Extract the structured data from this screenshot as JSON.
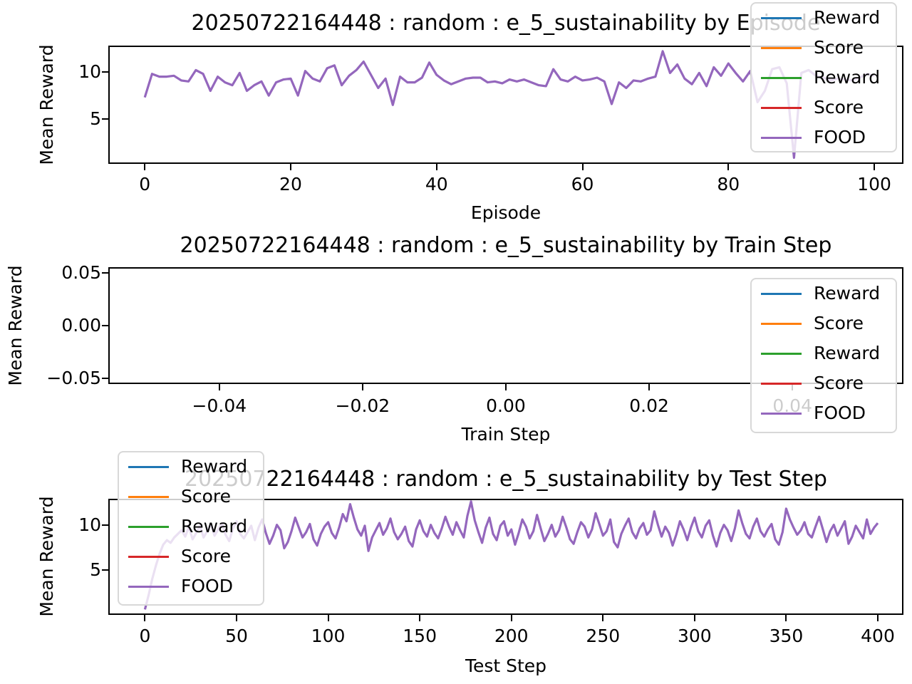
{
  "colors": {
    "background": "#ffffff",
    "axis": "#000000",
    "food_line": "#9467bd",
    "legend_border": "#d8d8d8"
  },
  "legend": {
    "entries": [
      {
        "label": "Reward",
        "color": "#1f77b4"
      },
      {
        "label": "Score",
        "color": "#ff7f0e"
      },
      {
        "label": "Reward",
        "color": "#2ca02c"
      },
      {
        "label": "Score",
        "color": "#d62728"
      },
      {
        "label": "FOOD",
        "color": "#9467bd"
      }
    ]
  },
  "chart_data": [
    {
      "type": "line",
      "title": "20250722164448 : random : e_5_sustainability by Episode",
      "xlabel": "Episode",
      "ylabel": "Mean Reward",
      "xlim": [
        -5,
        104
      ],
      "ylim": [
        0.25,
        12.8
      ],
      "xticks": [
        0,
        20,
        40,
        60,
        80,
        100
      ],
      "xtick_labels": [
        "0",
        "20",
        "40",
        "60",
        "80",
        "100"
      ],
      "yticks": [
        10,
        5
      ],
      "ytick_labels": [
        "10",
        "5"
      ],
      "grid": false,
      "legend_position": "upper-right",
      "series": [
        {
          "name": "FOOD",
          "color": "#9467bd",
          "x0": 0,
          "dx": 1,
          "y": [
            7.3,
            9.8,
            9.5,
            9.5,
            9.6,
            9.1,
            9.0,
            10.2,
            9.8,
            8.0,
            9.5,
            8.9,
            8.6,
            9.9,
            8.0,
            8.6,
            9.0,
            7.5,
            8.9,
            9.2,
            9.3,
            7.5,
            10.1,
            9.3,
            9.0,
            10.4,
            10.7,
            8.6,
            9.6,
            10.2,
            11.1,
            9.7,
            8.3,
            9.3,
            6.5,
            9.5,
            8.9,
            8.9,
            9.4,
            11.0,
            9.7,
            9.1,
            8.7,
            9.0,
            9.3,
            9.4,
            9.4,
            8.9,
            9.0,
            8.8,
            9.2,
            9.0,
            9.2,
            8.9,
            8.6,
            8.5,
            10.3,
            9.2,
            9.0,
            9.5,
            9.1,
            9.2,
            9.4,
            9.0,
            6.6,
            8.9,
            8.3,
            9.1,
            9.0,
            9.3,
            9.5,
            12.2,
            9.9,
            10.8,
            9.3,
            8.7,
            9.9,
            8.5,
            10.5,
            9.6,
            10.9,
            9.9,
            9.0,
            10.1,
            6.8,
            8.0,
            10.3,
            10.5,
            8.8,
            0.9,
            9.9,
            10.2,
            9.6,
            9.4,
            9.1,
            9.3,
            9.2,
            9.1,
            9.4,
            9.8,
            9.6
          ]
        }
      ]
    },
    {
      "type": "line",
      "title": "20250722164448 : random : e_5_sustainability by Train Step",
      "xlabel": "Train Step",
      "ylabel": "Mean Reward",
      "xlim": [
        -0.0555,
        0.0555
      ],
      "ylim": [
        -0.0555,
        0.0555
      ],
      "xticks": [
        -0.04,
        -0.02,
        0,
        0.02,
        0.04
      ],
      "xtick_labels": [
        "−0.04",
        "−0.02",
        "0.00",
        "0.02",
        "0.04"
      ],
      "yticks": [
        0.05,
        0,
        -0.05
      ],
      "ytick_labels": [
        "0.05",
        "0.00",
        "−0.05"
      ],
      "grid": false,
      "legend_position": "center-right",
      "series": []
    },
    {
      "type": "line",
      "title": "20250722164448 : random : e_5_sustainability by Test Step",
      "xlabel": "Test Step",
      "ylabel": "Mean Reward",
      "xlim": [
        -20,
        414
      ],
      "ylim": [
        0,
        12.9
      ],
      "xticks": [
        0,
        50,
        100,
        150,
        200,
        250,
        300,
        350,
        400
      ],
      "xtick_labels": [
        "0",
        "50",
        "100",
        "150",
        "200",
        "250",
        "300",
        "350",
        "400"
      ],
      "yticks": [
        10,
        5
      ],
      "ytick_labels": [
        "10",
        "5"
      ],
      "grid": false,
      "legend_position": "upper-left",
      "series": [
        {
          "name": "FOOD",
          "color": "#9467bd",
          "x0": 0,
          "dx": 2,
          "y": [
            0.6,
            2.2,
            4.0,
            5.5,
            6.8,
            7.8,
            8.3,
            8.0,
            8.6,
            9.0,
            9.4,
            8.7,
            9.8,
            8.4,
            9.1,
            9.9,
            8.6,
            9.3,
            10.1,
            8.8,
            9.5,
            10.2,
            8.9,
            8.2,
            9.6,
            10.4,
            9.0,
            8.5,
            9.2,
            9.9,
            8.3,
            9.7,
            10.6,
            9.1,
            7.9,
            8.8,
            10.0,
            9.4,
            7.4,
            8.1,
            9.3,
            10.8,
            9.7,
            8.6,
            9.2,
            10.1,
            8.4,
            7.7,
            9.0,
            9.8,
            10.3,
            9.1,
            8.5,
            9.7,
            11.2,
            10.4,
            12.3,
            10.8,
            9.5,
            8.8,
            9.9,
            7.1,
            8.6,
            9.4,
            10.2,
            8.9,
            9.6,
            10.7,
            9.2,
            8.4,
            9.0,
            9.8,
            8.2,
            7.6,
            9.5,
            10.5,
            9.3,
            8.7,
            10.0,
            9.1,
            8.5,
            9.6,
            10.9,
            9.8,
            8.9,
            10.3,
            9.4,
            8.6,
            11.0,
            12.6,
            10.5,
            9.2,
            8.0,
            9.7,
            10.8,
            9.0,
            8.3,
            9.9,
            10.4,
            8.8,
            9.5,
            7.8,
            9.1,
            10.6,
            9.8,
            8.5,
            9.3,
            11.1,
            9.6,
            8.2,
            9.0,
            10.0,
            8.7,
            9.4,
            10.9,
            9.7,
            8.4,
            7.9,
            9.2,
            10.3,
            9.8,
            8.6,
            9.5,
            11.3,
            10.1,
            8.8,
            9.3,
            10.6,
            8.1,
            7.5,
            9.0,
            9.9,
            10.7,
            9.2,
            8.5,
            9.6,
            10.2,
            8.9,
            9.4,
            11.5,
            10.0,
            8.7,
            9.8,
            9.1,
            7.7,
            8.9,
            10.4,
            9.5,
            8.3,
            9.7,
            10.8,
            9.3,
            8.6,
            9.9,
            10.5,
            8.8,
            7.6,
            9.1,
            10.0,
            9.4,
            8.2,
            9.6,
            11.6,
            10.2,
            9.0,
            8.5,
            9.8,
            10.7,
            9.3,
            8.7,
            9.5,
            10.1,
            8.4,
            7.8,
            9.2,
            11.8,
            10.6,
            9.7,
            8.9,
            9.4,
            10.3,
            9.0,
            8.6,
            9.8,
            10.9,
            9.5,
            8.1,
            9.3,
            10.0,
            8.8,
            9.6,
            10.4,
            7.9,
            8.7,
            9.9,
            9.2,
            8.5,
            10.6,
            9.0,
            9.7,
            10.2
          ]
        }
      ]
    }
  ]
}
